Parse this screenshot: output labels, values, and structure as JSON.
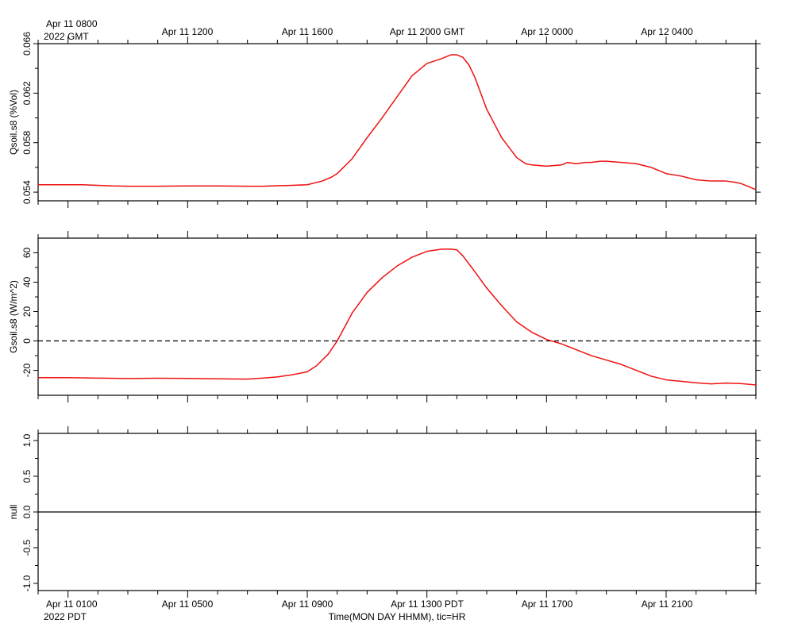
{
  "top_time_axis": {
    "first_label": [
      "Apr 11 0800",
      "2022 GMT"
    ],
    "labels": [
      "Apr 11 1200",
      "Apr 11 1600",
      "Apr 11 2000 GMT",
      "Apr 12 0000",
      "Apr 12 0400"
    ]
  },
  "bottom_time_axis": {
    "first_label": [
      "Apr 11 0100",
      "2022 PDT"
    ],
    "labels": [
      "Apr 11 0500",
      "Apr 11 0900",
      "Apr 11 1300 PDT",
      "Apr 11 1700",
      "Apr 11 2100"
    ],
    "title": "Time(MON DAY HHMM), tic=HR"
  },
  "colors": {
    "series": "#ee1111",
    "frame": "#000000",
    "zero_line": "#000000"
  },
  "chart_data": [
    {
      "type": "line",
      "ylabel": "Qsoil.s8 (%Vol)",
      "xlim": [
        -1,
        23
      ],
      "ylim": [
        0.0533,
        0.066
      ],
      "yticks": [
        0.054,
        0.058,
        0.062,
        0.066
      ],
      "ytick_labels": [
        "0.054",
        "0.058",
        "0.062",
        "0.066"
      ],
      "x_unit": "hours after Apr 11 0000 PDT",
      "series": [
        {
          "x": [
            -1,
            0,
            0.5,
            1,
            1.5,
            2,
            3,
            4,
            5,
            6,
            6.5,
            7,
            7.5,
            8,
            8.5,
            8.8,
            9,
            9.5,
            10,
            10.5,
            11,
            11.5,
            12,
            12.5,
            12.8,
            13,
            13.2,
            13.4,
            13.6,
            14,
            14.5,
            15,
            15.3,
            15.5,
            16,
            16.5,
            16.7,
            17,
            17.3,
            17.5,
            17.8,
            18,
            18.5,
            19,
            19.5,
            20,
            20.5,
            21,
            21.5,
            22,
            22.3,
            22.5,
            22.8,
            23
          ],
          "y": [
            0.0546,
            0.0546,
            0.0546,
            0.05455,
            0.0545,
            0.05448,
            0.05448,
            0.0545,
            0.0545,
            0.05448,
            0.05448,
            0.05452,
            0.05455,
            0.0546,
            0.0549,
            0.0552,
            0.0555,
            0.0567,
            0.0584,
            0.06,
            0.0617,
            0.0634,
            0.0644,
            0.0648,
            0.0651,
            0.0651,
            0.0649,
            0.0643,
            0.0633,
            0.0607,
            0.0584,
            0.0568,
            0.0563,
            0.0562,
            0.0561,
            0.0562,
            0.0564,
            0.0563,
            0.0564,
            0.0564,
            0.0565,
            0.0565,
            0.0564,
            0.0563,
            0.056,
            0.0555,
            0.0553,
            0.055,
            0.0549,
            0.0549,
            0.0548,
            0.0547,
            0.0544,
            0.0542
          ]
        }
      ]
    },
    {
      "type": "line",
      "ylabel": "Gsoil.s8 (W/m^2)",
      "xlim": [
        -1,
        23
      ],
      "ylim": [
        -37,
        70
      ],
      "yticks": [
        -20,
        0,
        20,
        40,
        60
      ],
      "ytick_labels": [
        "-20",
        "0",
        "20",
        "40",
        "60"
      ],
      "zero_line": "dashed",
      "x_unit": "hours after Apr 11 0000 PDT",
      "series": [
        {
          "x": [
            -1,
            0,
            1,
            2,
            3,
            4,
            5,
            6,
            6.5,
            7,
            7.5,
            8,
            8.3,
            8.7,
            9,
            9.5,
            10,
            10.5,
            11,
            11.5,
            12,
            12.5,
            12.8,
            13,
            13.2,
            13.5,
            14,
            14.5,
            15,
            15.5,
            16,
            16.5,
            17,
            17.5,
            18,
            18.5,
            19,
            19.5,
            20,
            20.5,
            21,
            21.5,
            22,
            22.5,
            23
          ],
          "y": [
            -25,
            -25,
            -25.3,
            -25.6,
            -25.4,
            -25.5,
            -25.8,
            -26,
            -25.3,
            -24.5,
            -23,
            -21,
            -17,
            -9,
            0,
            19,
            33,
            43,
            51,
            57,
            61,
            62.5,
            62.5,
            62,
            58,
            50,
            36,
            24,
            13,
            6,
            1,
            -2,
            -6,
            -10,
            -13,
            -16,
            -20,
            -24,
            -26.5,
            -27.5,
            -28.5,
            -29.2,
            -28.7,
            -29,
            -30
          ]
        }
      ]
    },
    {
      "type": "line",
      "ylabel": "null",
      "xlim": [
        -1,
        23
      ],
      "ylim": [
        -1.1,
        1.1
      ],
      "yticks": [
        -1.0,
        -0.5,
        0.0,
        0.5,
        1.0
      ],
      "ytick_labels": [
        "-1.0",
        "-0.5",
        "0.0",
        "0.5",
        "1.0"
      ],
      "zero_line": "solid",
      "series": []
    }
  ]
}
